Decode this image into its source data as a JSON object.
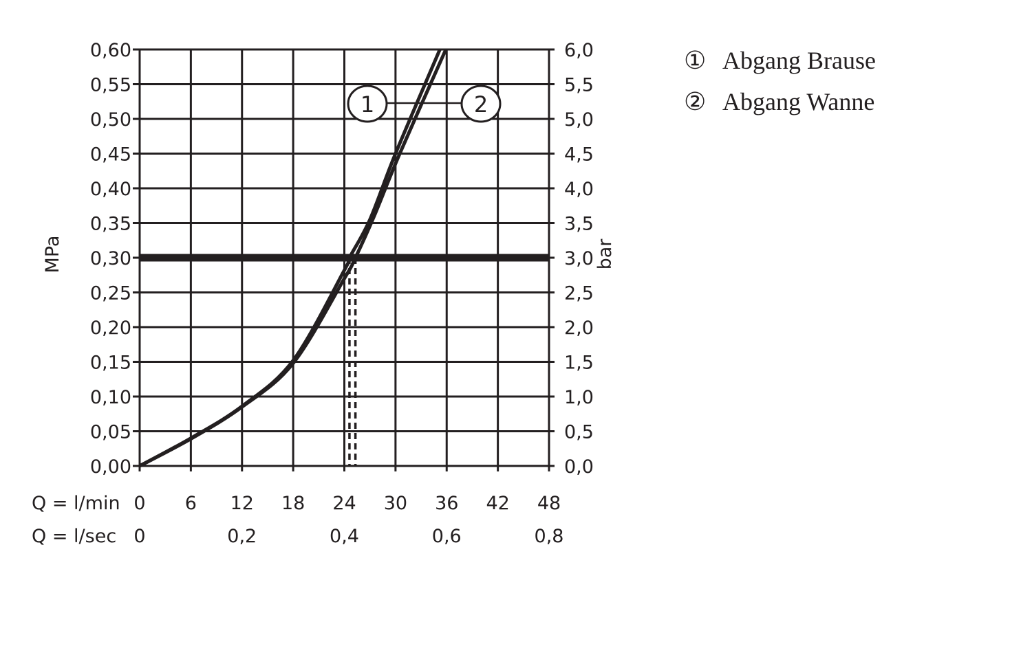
{
  "chart_data": {
    "type": "line",
    "x_unit_label": "Q = l/min",
    "x2_unit_label": "Q = l/sec",
    "ylabel_left": "MPa",
    "ylabel_right": "bar",
    "xlim": [
      0,
      48
    ],
    "ylim": [
      0,
      0.6
    ],
    "x_ticks": [
      "0",
      "6",
      "12",
      "18",
      "24",
      "30",
      "36",
      "42",
      "48"
    ],
    "x2_ticks": [
      {
        "x": 0,
        "label": "0"
      },
      {
        "x": 12,
        "label": "0,2"
      },
      {
        "x": 24,
        "label": "0,4"
      },
      {
        "x": 36,
        "label": "0,6"
      },
      {
        "x": 48,
        "label": "0,8"
      }
    ],
    "y_ticks_left": [
      "0,00",
      "0,05",
      "0,10",
      "0,15",
      "0,20",
      "0,25",
      "0,30",
      "0,35",
      "0,40",
      "0,45",
      "0,50",
      "0,55",
      "0,60"
    ],
    "y_ticks_right": [
      "0,0",
      "0,5",
      "1,0",
      "1,5",
      "2,0",
      "2,5",
      "3,0",
      "3,5",
      "4,0",
      "4,5",
      "5,0",
      "5,5",
      "6,0"
    ],
    "grid": true,
    "reference_line_y": 0.3,
    "reference_flows": [
      24.6,
      25.3
    ],
    "series": [
      {
        "name": "Abgang Brause",
        "marker": "1",
        "points": [
          [
            0,
            0
          ],
          [
            6,
            0.04
          ],
          [
            12,
            0.086
          ],
          [
            18,
            0.152
          ],
          [
            24,
            0.282
          ],
          [
            24.6,
            0.3
          ],
          [
            27,
            0.355
          ],
          [
            30,
            0.45
          ],
          [
            35.2,
            0.6
          ]
        ]
      },
      {
        "name": "Abgang Wanne",
        "marker": "2",
        "points": [
          [
            0,
            0
          ],
          [
            6,
            0.039
          ],
          [
            12,
            0.085
          ],
          [
            18,
            0.148
          ],
          [
            24,
            0.27
          ],
          [
            25.3,
            0.3
          ],
          [
            27.5,
            0.36
          ],
          [
            30.5,
            0.45
          ],
          [
            35.9,
            0.6
          ]
        ]
      }
    ],
    "legend": {
      "placement": "right",
      "items": [
        {
          "symbol": "①",
          "label": "Abgang Brause"
        },
        {
          "symbol": "②",
          "label": "Abgang Wanne"
        }
      ]
    },
    "color": "#231f20"
  }
}
